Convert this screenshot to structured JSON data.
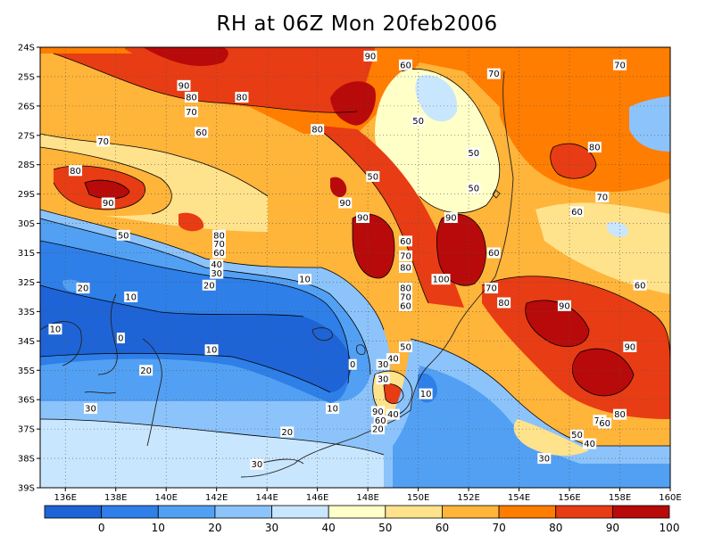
{
  "title": "RH at 06Z Mon 20feb2006",
  "map": {
    "lon_range": [
      135,
      160
    ],
    "lat_range": [
      -39,
      -24
    ],
    "lon_ticks": [
      {
        "lon": 136,
        "label": "136E"
      },
      {
        "lon": 138,
        "label": "138E"
      },
      {
        "lon": 140,
        "label": "140E"
      },
      {
        "lon": 142,
        "label": "142E"
      },
      {
        "lon": 144,
        "label": "144E"
      },
      {
        "lon": 146,
        "label": "146E"
      },
      {
        "lon": 148,
        "label": "148E"
      },
      {
        "lon": 150,
        "label": "150E"
      },
      {
        "lon": 152,
        "label": "152E"
      },
      {
        "lon": 154,
        "label": "154E"
      },
      {
        "lon": 156,
        "label": "156E"
      },
      {
        "lon": 158,
        "label": "158E"
      },
      {
        "lon": 160,
        "label": "160E"
      }
    ],
    "lat_ticks": [
      {
        "lat": -24,
        "label": "24S"
      },
      {
        "lat": -25,
        "label": "25S"
      },
      {
        "lat": -26,
        "label": "26S"
      },
      {
        "lat": -27,
        "label": "27S"
      },
      {
        "lat": -28,
        "label": "28S"
      },
      {
        "lat": -29,
        "label": "29S"
      },
      {
        "lat": -30,
        "label": "30S"
      },
      {
        "lat": -31,
        "label": "31S"
      },
      {
        "lat": -32,
        "label": "32S"
      },
      {
        "lat": -33,
        "label": "33S"
      },
      {
        "lat": -34,
        "label": "34S"
      },
      {
        "lat": -35,
        "label": "35S"
      },
      {
        "lat": -36,
        "label": "36S"
      },
      {
        "lat": -37,
        "label": "37S"
      },
      {
        "lat": -38,
        "label": "38S"
      },
      {
        "lat": -39,
        "label": "39S"
      }
    ],
    "grid_lines": "dotted",
    "contour_labels": [
      {
        "lon": 136.7,
        "lat": -32.2,
        "text": "20"
      },
      {
        "lon": 135.6,
        "lat": -33.6,
        "text": "10"
      },
      {
        "lon": 138.6,
        "lat": -32.5,
        "text": "10"
      },
      {
        "lon": 138.2,
        "lat": -33.9,
        "text": "0"
      },
      {
        "lon": 139.2,
        "lat": -35.0,
        "text": "20"
      },
      {
        "lon": 137.0,
        "lat": -36.3,
        "text": "30"
      },
      {
        "lon": 141.8,
        "lat": -34.3,
        "text": "10"
      },
      {
        "lon": 141.7,
        "lat": -32.1,
        "text": "20"
      },
      {
        "lon": 145.5,
        "lat": -31.9,
        "text": "10"
      },
      {
        "lon": 147.4,
        "lat": -34.8,
        "text": "0"
      },
      {
        "lon": 146.6,
        "lat": -36.3,
        "text": "10"
      },
      {
        "lon": 144.8,
        "lat": -37.1,
        "text": "20"
      },
      {
        "lon": 143.6,
        "lat": -38.2,
        "text": "30"
      },
      {
        "lon": 138.3,
        "lat": -30.4,
        "text": "50"
      },
      {
        "lon": 136.4,
        "lat": -28.2,
        "text": "80"
      },
      {
        "lon": 137.7,
        "lat": -29.3,
        "text": "90"
      },
      {
        "lon": 137.5,
        "lat": -27.2,
        "text": "70"
      },
      {
        "lon": 140.7,
        "lat": -25.3,
        "text": "90"
      },
      {
        "lon": 141.0,
        "lat": -25.7,
        "text": "80"
      },
      {
        "lon": 141.0,
        "lat": -26.2,
        "text": "70"
      },
      {
        "lon": 141.4,
        "lat": -26.9,
        "text": "60"
      },
      {
        "lon": 143.0,
        "lat": -25.7,
        "text": "80"
      },
      {
        "lon": 146.0,
        "lat": -26.8,
        "text": "80"
      },
      {
        "lon": 142.1,
        "lat": -30.4,
        "text": "80"
      },
      {
        "lon": 142.1,
        "lat": -30.7,
        "text": "70"
      },
      {
        "lon": 142.1,
        "lat": -31.0,
        "text": "60"
      },
      {
        "lon": 142.0,
        "lat": -31.4,
        "text": "40"
      },
      {
        "lon": 142.0,
        "lat": -31.7,
        "text": "30"
      },
      {
        "lon": 148.1,
        "lat": -24.3,
        "text": "90"
      },
      {
        "lon": 149.5,
        "lat": -24.6,
        "text": "60"
      },
      {
        "lon": 147.1,
        "lat": -29.3,
        "text": "90"
      },
      {
        "lon": 147.8,
        "lat": -29.8,
        "text": "90"
      },
      {
        "lon": 148.2,
        "lat": -28.4,
        "text": "50"
      },
      {
        "lon": 150.0,
        "lat": -26.5,
        "text": "50"
      },
      {
        "lon": 152.2,
        "lat": -27.6,
        "text": "50"
      },
      {
        "lon": 152.2,
        "lat": -28.8,
        "text": "50"
      },
      {
        "lon": 151.3,
        "lat": -29.8,
        "text": "90"
      },
      {
        "lon": 149.5,
        "lat": -30.6,
        "text": "60"
      },
      {
        "lon": 149.5,
        "lat": -31.1,
        "text": "70"
      },
      {
        "lon": 149.5,
        "lat": -31.5,
        "text": "80"
      },
      {
        "lon": 150.9,
        "lat": -31.9,
        "text": "100"
      },
      {
        "lon": 149.5,
        "lat": -32.2,
        "text": "80"
      },
      {
        "lon": 149.5,
        "lat": -32.5,
        "text": "70"
      },
      {
        "lon": 149.5,
        "lat": -32.8,
        "text": "60"
      },
      {
        "lon": 153.0,
        "lat": -31.0,
        "text": "60"
      },
      {
        "lon": 152.9,
        "lat": -32.2,
        "text": "70"
      },
      {
        "lon": 153.4,
        "lat": -32.7,
        "text": "80"
      },
      {
        "lon": 153.0,
        "lat": -24.9,
        "text": "70"
      },
      {
        "lon": 158.0,
        "lat": -24.6,
        "text": "70"
      },
      {
        "lon": 157.0,
        "lat": -27.4,
        "text": "80"
      },
      {
        "lon": 157.3,
        "lat": -29.1,
        "text": "70"
      },
      {
        "lon": 156.3,
        "lat": -29.6,
        "text": "60"
      },
      {
        "lon": 158.8,
        "lat": -32.1,
        "text": "60"
      },
      {
        "lon": 155.8,
        "lat": -32.8,
        "text": "90"
      },
      {
        "lon": 158.4,
        "lat": -34.2,
        "text": "90"
      },
      {
        "lon": 149.5,
        "lat": -34.2,
        "text": "50"
      },
      {
        "lon": 149.0,
        "lat": -34.6,
        "text": "40"
      },
      {
        "lon": 148.6,
        "lat": -34.8,
        "text": "30"
      },
      {
        "lon": 148.6,
        "lat": -35.3,
        "text": "30"
      },
      {
        "lon": 150.3,
        "lat": -35.8,
        "text": "10"
      },
      {
        "lon": 148.4,
        "lat": -36.4,
        "text": "90"
      },
      {
        "lon": 148.5,
        "lat": -36.7,
        "text": "60"
      },
      {
        "lon": 149.0,
        "lat": -36.5,
        "text": "40"
      },
      {
        "lon": 148.4,
        "lat": -37.0,
        "text": "20"
      },
      {
        "lon": 156.3,
        "lat": -37.2,
        "text": "50"
      },
      {
        "lon": 156.8,
        "lat": -37.5,
        "text": "40"
      },
      {
        "lon": 155.0,
        "lat": -38.0,
        "text": "30"
      },
      {
        "lon": 157.2,
        "lat": -36.7,
        "text": "70"
      },
      {
        "lon": 157.4,
        "lat": -36.8,
        "text": "60"
      },
      {
        "lon": 158.0,
        "lat": -36.5,
        "text": "80"
      }
    ]
  },
  "colorbar": {
    "colors": [
      "#1e64d7",
      "#2e7fe8",
      "#52a0f4",
      "#8cc3fa",
      "#c9e6ff",
      "#ffffc8",
      "#ffe28c",
      "#ffb43a",
      "#ff7d00",
      "#e83c14",
      "#b80a0a"
    ],
    "labels": [
      "0",
      "10",
      "20",
      "30",
      "40",
      "50",
      "60",
      "70",
      "80",
      "90",
      "100"
    ]
  }
}
